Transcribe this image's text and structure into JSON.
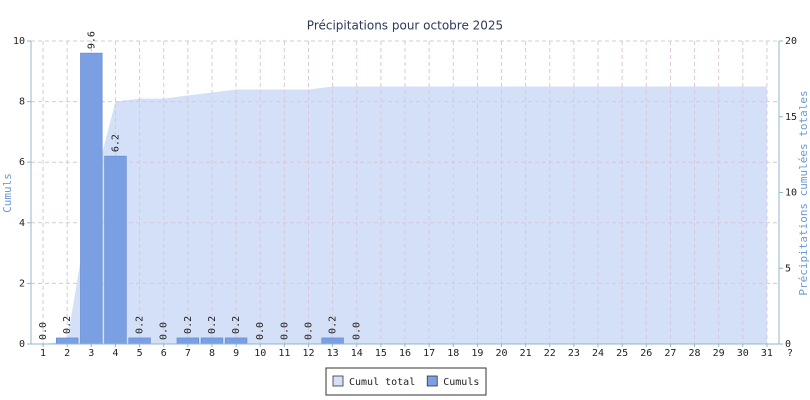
{
  "chart_data": {
    "type": "bar",
    "title": "Précipitations pour octobre 2025",
    "y_label": "Cumuls",
    "y2_label": "Précipitations cumulées totales",
    "categories": [
      "1",
      "2",
      "3",
      "4",
      "5",
      "6",
      "7",
      "8",
      "9",
      "10",
      "11",
      "12",
      "13",
      "14",
      "15",
      "16",
      "17",
      "18",
      "19",
      "20",
      "21",
      "22",
      "23",
      "24",
      "25",
      "26",
      "27",
      "28",
      "29",
      "30",
      "31"
    ],
    "x_end_label": "?",
    "ylim": [
      0,
      10
    ],
    "yticks": [
      0,
      2,
      4,
      6,
      8,
      10
    ],
    "y2lim": [
      0,
      20
    ],
    "y2ticks": [
      0,
      5,
      10,
      15,
      20
    ],
    "grid": true,
    "legend": "bottom",
    "series": [
      {
        "name": "Cumul total",
        "type": "area",
        "axis": "y2",
        "color": "#d3e0f8",
        "values": [
          0,
          0.2,
          9.8,
          16.0,
          16.2,
          16.2,
          16.4,
          16.6,
          16.8,
          16.8,
          16.8,
          16.8,
          17.0,
          17.0,
          17.0,
          17.0,
          17.0,
          17.0,
          17.0,
          17.0,
          17.0,
          17.0,
          17.0,
          17.0,
          17.0,
          17.0,
          17.0,
          17.0,
          17.0,
          17.0,
          17.0
        ]
      },
      {
        "name": "Cumuls",
        "type": "bar",
        "color": "#7a9fe2",
        "values": [
          0,
          0.2,
          9.6,
          6.2,
          0.2,
          0,
          0.2,
          0.2,
          0.2,
          0,
          0,
          0,
          0.2,
          0,
          null,
          null,
          null,
          null,
          null,
          null,
          null,
          null,
          null,
          null,
          null,
          null,
          null,
          null,
          null,
          null,
          null
        ],
        "value_labels": [
          "0.0",
          "0.2",
          "9.6",
          "6.2",
          "0.2",
          "0.0",
          "0.2",
          "0.2",
          "0.2",
          "0.0",
          "0.0",
          "0.0",
          "0.2",
          "0.0",
          null,
          null,
          null,
          null,
          null,
          null,
          null,
          null,
          null,
          null,
          null,
          null,
          null,
          null,
          null,
          null,
          null
        ]
      }
    ]
  }
}
